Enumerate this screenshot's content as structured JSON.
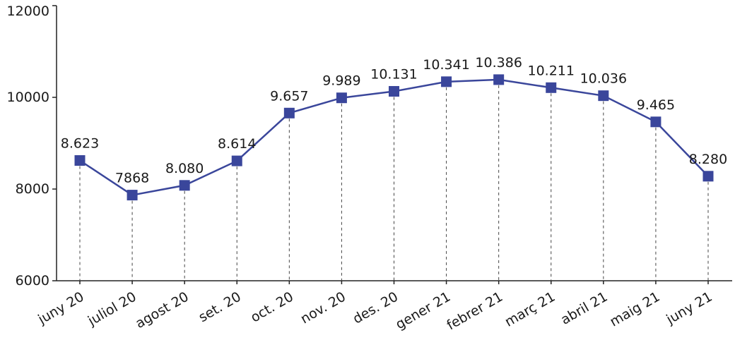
{
  "chart_data": {
    "type": "line",
    "categories": [
      "juny 20",
      "juliol 20",
      "agost 20",
      "set. 20",
      "oct. 20",
      "nov. 20",
      "des. 20",
      "gener 21",
      "febrer 21",
      "març 21",
      "abril 21",
      "maig 21",
      "juny 21"
    ],
    "values": [
      8623,
      7868,
      8080,
      8614,
      9657,
      9989,
      10131,
      10341,
      10386,
      10211,
      10036,
      9465,
      8280
    ],
    "data_labels": [
      "8.623",
      "7868",
      "8.080",
      "8.614",
      "9.657",
      "9.989",
      "10.131",
      "10.341",
      "10.386",
      "10.211",
      "10.036",
      "9.465",
      "8.280"
    ],
    "yticks": [
      6000,
      8000,
      10000,
      12000
    ],
    "ytick_labels": [
      "6000",
      "8000",
      "10000",
      "12000"
    ],
    "ylim": [
      6000,
      12000
    ],
    "grid": false,
    "drop_lines": true,
    "color": "#3a469b"
  }
}
